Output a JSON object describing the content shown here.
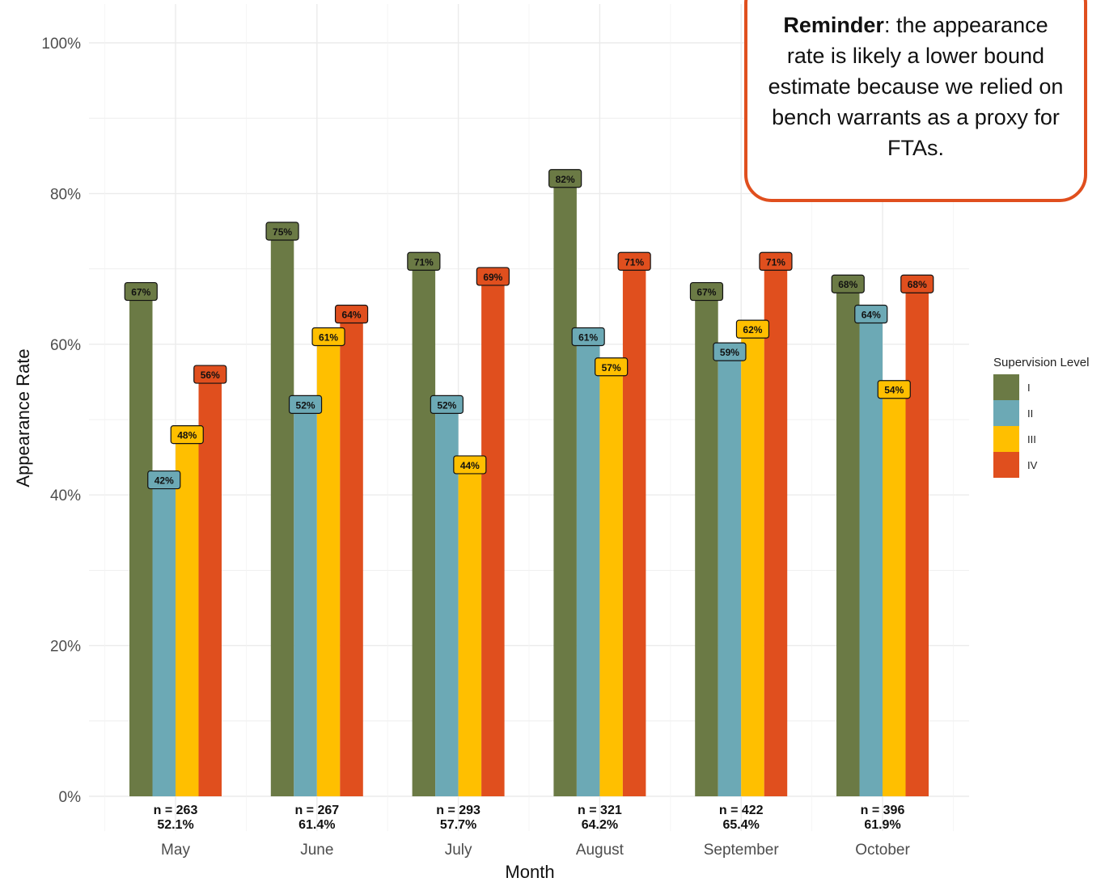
{
  "chart_data": {
    "type": "bar",
    "xlabel": "Month",
    "ylabel": "Appearance Rate",
    "ylim": [
      0,
      100
    ],
    "yticks": [
      "0%",
      "20%",
      "40%",
      "60%",
      "80%",
      "100%"
    ],
    "categories": [
      "May",
      "June",
      "July",
      "August",
      "September",
      "October"
    ],
    "series": [
      {
        "name": "I",
        "color": "#6b7a45",
        "values": [
          67,
          75,
          71,
          82,
          67,
          68
        ]
      },
      {
        "name": "II",
        "color": "#6ca9b5",
        "values": [
          42,
          52,
          52,
          61,
          59,
          64
        ]
      },
      {
        "name": "III",
        "color": "#ffbf00",
        "values": [
          48,
          61,
          44,
          57,
          62,
          54
        ]
      },
      {
        "name": "IV",
        "color": "#e04f1e",
        "values": [
          56,
          64,
          69,
          71,
          71,
          68
        ]
      }
    ],
    "data_labels": [
      [
        "67%",
        "42%",
        "48%",
        "56%"
      ],
      [
        "75%",
        "52%",
        "61%",
        "64%"
      ],
      [
        "71%",
        "52%",
        "44%",
        "69%"
      ],
      [
        "82%",
        "61%",
        "57%",
        "71%"
      ],
      [
        "67%",
        "59%",
        "62%",
        "71%"
      ],
      [
        "68%",
        "64%",
        "54%",
        "68%"
      ]
    ],
    "n_labels": [
      "n = 263",
      "n = 267",
      "n = 293",
      "n = 321",
      "n = 422",
      "n = 396"
    ],
    "overall_labels": [
      "52.1%",
      "61.4%",
      "57.7%",
      "64.2%",
      "65.4%",
      "61.9%"
    ],
    "legend_title": "Supervision Level",
    "legend_position": "right",
    "grid": true
  },
  "reminder": {
    "bold": "Reminder",
    "text": ": the appearance rate is likely a lower bound estimate because we relied on bench warrants as a proxy for FTAs."
  }
}
